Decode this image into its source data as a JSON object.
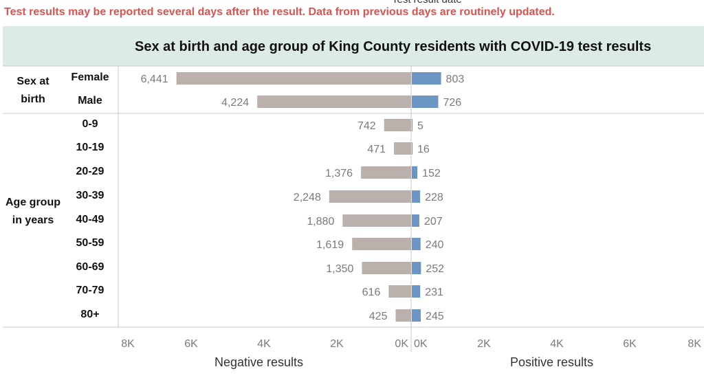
{
  "cut_text": "Test result date",
  "notice": "Test results may be reported several days after the result. Data from previous days are routinely updated.",
  "chart_data": {
    "type": "bar",
    "title": "Sex at birth and age group of King County residents with COVID-19 test results",
    "groups": [
      {
        "label": "Sex at birth",
        "categories": [
          "Female",
          "Male"
        ]
      },
      {
        "label": "Age group in years",
        "categories": [
          "0-9",
          "10-19",
          "20-29",
          "30-39",
          "40-49",
          "50-59",
          "60-69",
          "70-79",
          "80+"
        ]
      }
    ],
    "categories": [
      "Female",
      "Male",
      "0-9",
      "10-19",
      "20-29",
      "30-39",
      "40-49",
      "50-59",
      "60-69",
      "70-79",
      "80+"
    ],
    "series": [
      {
        "name": "Negative results",
        "color": "#bab0ac",
        "values": [
          6441,
          4224,
          742,
          471,
          1376,
          2248,
          1880,
          1619,
          1350,
          616,
          425
        ],
        "labels": [
          "6,441",
          "4,224",
          "742",
          "471",
          "1,376",
          "2,248",
          "1,880",
          "1,619",
          "1,350",
          "616",
          "425"
        ]
      },
      {
        "name": "Positive results",
        "color": "#6b96c3",
        "values": [
          803,
          726,
          5,
          16,
          152,
          228,
          207,
          240,
          252,
          231,
          245
        ],
        "labels": [
          "803",
          "726",
          "5",
          "16",
          "152",
          "228",
          "207",
          "240",
          "252",
          "231",
          "245"
        ]
      }
    ],
    "negative_axis": {
      "title": "Negative results",
      "range": [
        8000,
        0
      ],
      "ticks": [
        "8K",
        "6K",
        "4K",
        "2K",
        "0K"
      ]
    },
    "positive_axis": {
      "title": "Positive results",
      "range": [
        0,
        8000
      ],
      "ticks": [
        "0K",
        "2K",
        "4K",
        "6K",
        "8K"
      ]
    }
  }
}
